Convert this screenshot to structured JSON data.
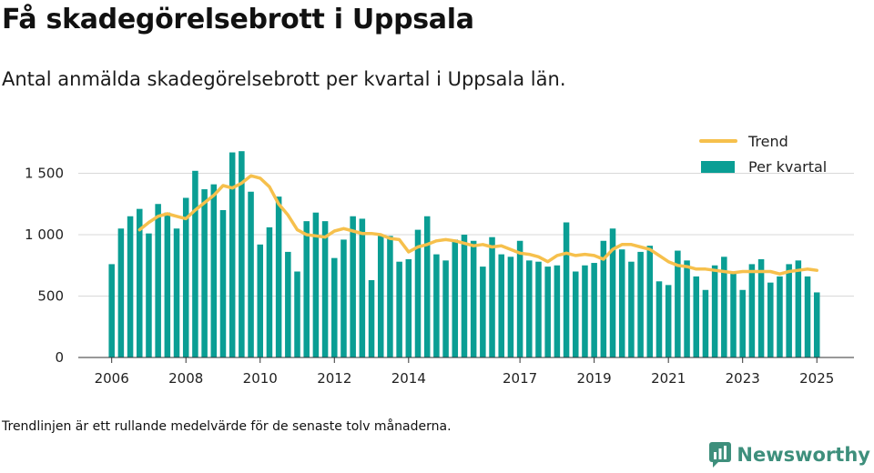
{
  "title": "Få skadegörelsebrott i Uppsala",
  "subtitle": "Antal anmälda skadegörelsebrott per kvartal i Uppsala län.",
  "footnote": "Trendlinjen är ett rullande medelvärde för de senaste tolv månaderna.",
  "brand": {
    "name": "Newsworthy",
    "icon": "newsworthy-logo-icon",
    "color": "#3e8f7c"
  },
  "chart_data": {
    "type": "bar",
    "ylim": [
      0,
      1800
    ],
    "yticks": [
      0,
      500,
      1000,
      1500
    ],
    "ytick_labels": [
      "0",
      "500",
      "1 000",
      "1 500"
    ],
    "xticks": [
      {
        "label": "2006",
        "at": 2006.0
      },
      {
        "label": "2008",
        "at": 2008.0
      },
      {
        "label": "2010",
        "at": 2010.0
      },
      {
        "label": "2012",
        "at": 2012.0
      },
      {
        "label": "2014",
        "at": 2014.0
      },
      {
        "label": "2017",
        "at": 2017.0
      },
      {
        "label": "2019",
        "at": 2019.0
      },
      {
        "label": "2021",
        "at": 2021.0
      },
      {
        "label": "2023",
        "at": 2023.0
      },
      {
        "label": "2025",
        "at": 2025.0
      }
    ],
    "xlim": [
      2005.1,
      2026.0
    ],
    "grid": true,
    "legend_position": "top-right",
    "bar_color": "#0a9e94",
    "trend_color": "#f6c04c",
    "series": [
      {
        "name": "Per kvartal",
        "type": "bar",
        "start": 2006.0,
        "step": 0.25,
        "values": [
          760,
          1050,
          1150,
          1210,
          1010,
          1250,
          1180,
          1050,
          1300,
          1520,
          1370,
          1410,
          1200,
          1670,
          1680,
          1350,
          920,
          1060,
          1310,
          860,
          700,
          1110,
          1180,
          1110,
          810,
          960,
          1150,
          1130,
          630,
          990,
          990,
          780,
          800,
          1040,
          1150,
          840,
          790,
          960,
          1000,
          950,
          740,
          980,
          840,
          820,
          950,
          790,
          780,
          740,
          750,
          1100,
          700,
          750,
          770,
          950,
          1050,
          880,
          780,
          860,
          910,
          620,
          590,
          870,
          790,
          660,
          550,
          750,
          820,
          700,
          550,
          760,
          800,
          610,
          660,
          760,
          790,
          660,
          530
        ]
      },
      {
        "name": "Trend",
        "type": "line",
        "x": [
          2006.75,
          2007.0,
          2007.25,
          2007.5,
          2007.75,
          2008.0,
          2008.25,
          2008.5,
          2008.75,
          2009.0,
          2009.25,
          2009.5,
          2009.75,
          2010.0,
          2010.25,
          2010.5,
          2010.75,
          2011.0,
          2011.25,
          2011.5,
          2011.75,
          2012.0,
          2012.25,
          2012.5,
          2012.75,
          2013.0,
          2013.25,
          2013.5,
          2013.75,
          2014.0,
          2014.25,
          2014.5,
          2014.75,
          2015.0,
          2015.25,
          2015.5,
          2015.75,
          2016.0,
          2016.25,
          2016.5,
          2016.75,
          2017.0,
          2017.25,
          2017.5,
          2017.75,
          2018.0,
          2018.25,
          2018.5,
          2018.75,
          2019.0,
          2019.25,
          2019.5,
          2019.75,
          2020.0,
          2020.25,
          2020.5,
          2020.75,
          2021.0,
          2021.25,
          2021.5,
          2021.75,
          2022.0,
          2022.25,
          2022.5,
          2022.75,
          2023.0,
          2023.25,
          2023.5,
          2023.75,
          2024.0,
          2024.25,
          2024.5,
          2024.75,
          2025.0
        ],
        "values": [
          1040,
          1100,
          1150,
          1170,
          1150,
          1130,
          1200,
          1260,
          1320,
          1400,
          1380,
          1420,
          1480,
          1460,
          1390,
          1250,
          1160,
          1040,
          1000,
          990,
          980,
          1030,
          1050,
          1030,
          1010,
          1010,
          1000,
          970,
          960,
          860,
          900,
          920,
          950,
          960,
          950,
          930,
          910,
          920,
          900,
          910,
          880,
          850,
          840,
          820,
          780,
          830,
          850,
          830,
          840,
          830,
          800,
          880,
          920,
          920,
          900,
          880,
          830,
          780,
          750,
          740,
          720,
          720,
          710,
          700,
          690,
          700,
          700,
          700,
          700,
          680,
          700,
          710,
          720,
          710
        ]
      }
    ]
  }
}
